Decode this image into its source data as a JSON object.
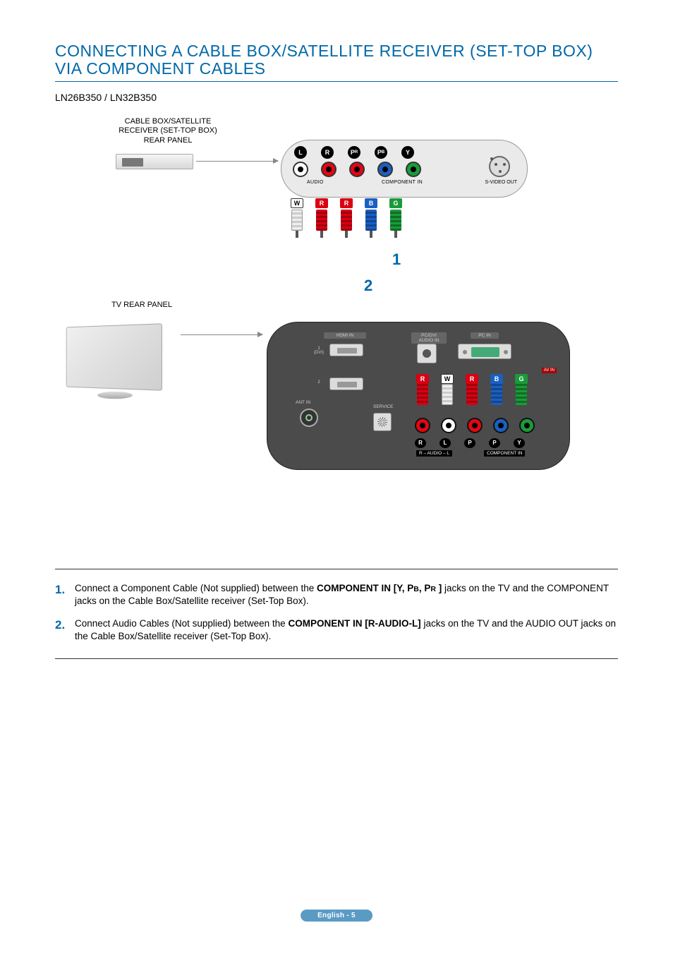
{
  "title_line1": "CONNECTING A CABLE BOX/SATELLITE RECEIVER (SET-TOP BOX)",
  "title_line2": "VIA COMPONENT CABLES",
  "models": "LN26B350 / LN32B350",
  "diagram": {
    "stb_label_l1": "CABLE BOX/SATELLITE",
    "stb_label_l2": "RECEIVER (SET-TOP BOX)",
    "stb_label_l3": "REAR PANEL",
    "tv_label": "TV REAR PANEL",
    "stb_panel": {
      "badges": [
        "L",
        "R",
        "P",
        "P",
        "Y"
      ],
      "badge_sub": [
        "",
        "",
        "R",
        "B",
        ""
      ],
      "audio_label": "AUDIO",
      "component_label": "COMPONENT IN",
      "svideo_label": "S-VIDEO OUT"
    },
    "plugs_top": [
      {
        "letter": "W",
        "color": "white"
      },
      {
        "letter": "R",
        "color": "red"
      },
      {
        "letter": "R",
        "color": "red"
      },
      {
        "letter": "B",
        "color": "blue"
      },
      {
        "letter": "G",
        "color": "green"
      }
    ],
    "cable_numbers": {
      "one": "1",
      "two": "2"
    },
    "tv_panel": {
      "hdmi_label": "HDMI IN",
      "hdmi_1": "1\n(DVI)",
      "hdmi_2": "2",
      "ant_label": "ANT IN",
      "service_label": "SERVICE",
      "pcdvi_label": "PC/DVI\nAUDIO IN",
      "pcin_label": "PC IN",
      "avin_label": "AV IN",
      "audio_label": "R – AUDIO – L",
      "component_label": "COMPONENT IN",
      "plugs": [
        {
          "letter": "R",
          "color": "red"
        },
        {
          "letter": "W",
          "color": "white"
        },
        {
          "letter": "R",
          "color": "red"
        },
        {
          "letter": "B",
          "color": "blue"
        },
        {
          "letter": "G",
          "color": "green"
        }
      ],
      "badges": [
        "R",
        "L",
        "P",
        "P",
        "Y"
      ],
      "plug_under": [
        "R",
        "AUDIO",
        "R",
        "B",
        "G"
      ]
    },
    "colors": {
      "accent": "#0068a8",
      "red": "#e30613",
      "blue": "#1b5fc1",
      "green": "#1a9b3a",
      "panel_grey": "#eaeaea",
      "tv_grey": "#4b4b4b"
    }
  },
  "instructions": [
    {
      "num": "1.",
      "pre": "Connect a Component Cable (Not supplied) between the ",
      "bold": "COMPONENT IN [Y, P",
      "sub1": "B",
      "mid": ", P",
      "sub2": "R",
      "bold_end": " ]",
      "post": " jacks on the TV and the COMPONENT jacks on the Cable Box/Satellite receiver (Set-Top Box)."
    },
    {
      "num": "2.",
      "pre": "Connect Audio Cables (Not supplied) between the ",
      "bold": "COMPONENT IN [R-AUDIO-L]",
      "post": " jacks on the TV and the AUDIO OUT jacks on the Cable Box/Satellite receiver (Set-Top Box)."
    }
  ],
  "footer": "English - 5"
}
